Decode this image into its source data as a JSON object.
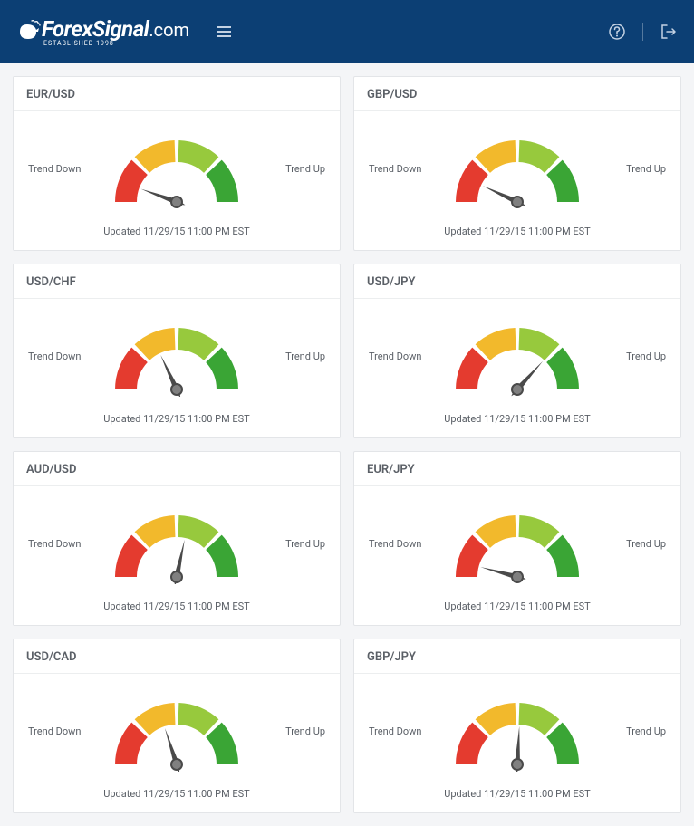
{
  "brand": {
    "name_main": "ForexSignal",
    "name_suffix": ".com",
    "subtitle": "ESTABLISHED 1998"
  },
  "labels": {
    "trend_down": "Trend Down",
    "trend_up": "Trend Up",
    "updated_prefix": "Updated "
  },
  "gauge": {
    "colors": {
      "seg1": "#e43b2f",
      "seg2": "#f2b92c",
      "seg3": "#97c93d",
      "seg4": "#3aa535",
      "needle": "#4a4a4a",
      "hub_fill": "#808080",
      "hub_stroke": "#4a4a4a"
    }
  },
  "cards": [
    {
      "pair": "EUR/USD",
      "updated": "11/29/15 11:00 PM EST",
      "needle_angle": -70
    },
    {
      "pair": "GBP/USD",
      "updated": "11/29/15 11:00 PM EST",
      "needle_angle": -65
    },
    {
      "pair": "USD/CHF",
      "updated": "11/29/15 11:00 PM EST",
      "needle_angle": -25
    },
    {
      "pair": "USD/JPY",
      "updated": "11/29/15 11:00 PM EST",
      "needle_angle": 42
    },
    {
      "pair": "AUD/USD",
      "updated": "11/29/15 11:00 PM EST",
      "needle_angle": 12
    },
    {
      "pair": "EUR/JPY",
      "updated": "11/29/15 11:00 PM EST",
      "needle_angle": -75
    },
    {
      "pair": "USD/CAD",
      "updated": "11/29/15 11:00 PM EST",
      "needle_angle": -18
    },
    {
      "pair": "GBP/JPY",
      "updated": "11/29/15 11:00 PM EST",
      "needle_angle": 3
    }
  ]
}
